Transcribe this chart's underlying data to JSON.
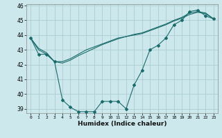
{
  "xlabel": "Humidex (Indice chaleur)",
  "background_color": "#cce8ec",
  "grid_color": "#aaccd0",
  "line_color": "#1a6b6b",
  "x_hours": [
    0,
    1,
    2,
    3,
    4,
    5,
    6,
    7,
    8,
    9,
    10,
    11,
    12,
    13,
    14,
    15,
    16,
    17,
    18,
    19,
    20,
    21,
    22,
    23
  ],
  "series_main": [
    43.8,
    42.7,
    42.7,
    42.2,
    39.6,
    39.1,
    38.8,
    38.8,
    38.8,
    39.5,
    39.5,
    39.5,
    39.0,
    40.6,
    41.6,
    43.0,
    43.3,
    43.8,
    44.7,
    45.0,
    45.6,
    45.7,
    45.3,
    45.1
  ],
  "series_smooth1": [
    43.8,
    43.0,
    42.7,
    42.2,
    42.2,
    42.4,
    42.7,
    43.0,
    43.2,
    43.4,
    43.6,
    43.8,
    43.9,
    44.0,
    44.1,
    44.3,
    44.5,
    44.7,
    44.95,
    45.15,
    45.4,
    45.55,
    45.45,
    45.1
  ],
  "series_smooth2": [
    43.8,
    43.1,
    42.8,
    42.2,
    42.1,
    42.3,
    42.6,
    42.85,
    43.1,
    43.35,
    43.55,
    43.75,
    43.9,
    44.05,
    44.15,
    44.35,
    44.55,
    44.75,
    45.0,
    45.2,
    45.5,
    45.6,
    45.5,
    45.1
  ],
  "ylim": [
    38.7,
    46.1
  ],
  "yticks": [
    39,
    40,
    41,
    42,
    43,
    44,
    45,
    46
  ],
  "xlim": [
    -0.5,
    23.5
  ],
  "xticks": [
    0,
    1,
    2,
    3,
    4,
    5,
    6,
    7,
    8,
    9,
    10,
    11,
    12,
    13,
    14,
    15,
    16,
    17,
    18,
    19,
    20,
    21,
    22,
    23
  ]
}
